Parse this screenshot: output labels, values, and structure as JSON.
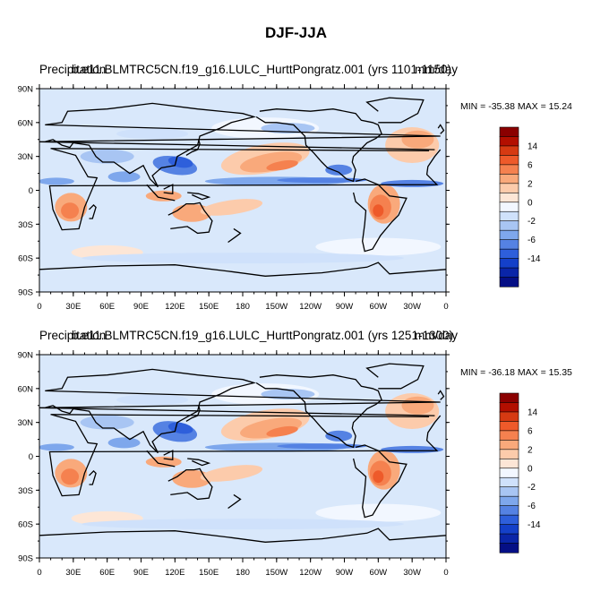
{
  "title": "DJF-JJA",
  "colors": {
    "land_outline": "#000000",
    "background": "#ffffff"
  },
  "axes": {
    "lat_labels": [
      "90N",
      "60N",
      "30N",
      "0",
      "30S",
      "60S",
      "90S"
    ],
    "lon_labels": [
      "0",
      "30E",
      "60E",
      "90E",
      "120E",
      "150E",
      "180",
      "150W",
      "120W",
      "90W",
      "60W",
      "30W",
      "0"
    ]
  },
  "legend": {
    "levels": [
      "14",
      "6",
      "2",
      "0",
      "-2",
      "-6",
      "-14"
    ],
    "colors": [
      "#8b0000",
      "#b30f00",
      "#d63a12",
      "#ee5a2a",
      "#f5814f",
      "#f9a97b",
      "#fccbab",
      "#fde6d6",
      "#f2f7ff",
      "#cfe1fb",
      "#a8c5f3",
      "#7ea7ec",
      "#5582e3",
      "#2e5fdb",
      "#1440c9",
      "#0a25a8",
      "#050f85"
    ]
  },
  "panels": [
    {
      "left_title": "Precipitation",
      "overlay_title": "b.e11.BLMTRC5CN.f19_g16.LULC_HurttPongratz.001 (yrs 1101-1150)",
      "right_title": "mm/day",
      "min_max": "MIN = -35.38 MAX =  15.24"
    },
    {
      "left_title": "Precipitation",
      "overlay_title": "b.e11.BLMTRC5CN.f19_g16.LULC_HurttPongratz.001 (yrs 1251-1300)",
      "right_title": "mm/day",
      "min_max": "MIN = -36.18 MAX =  15.35"
    }
  ],
  "map_features": {
    "positive_regions": [
      "Southern Africa",
      "Australia",
      "South America",
      "North Pacific",
      "North Atlantic",
      "South Pacific convergence zone"
    ],
    "negative_regions": [
      "ITCZ band",
      "Western North Pacific",
      "Central America",
      "West Africa",
      "Equatorial Atlantic"
    ]
  }
}
